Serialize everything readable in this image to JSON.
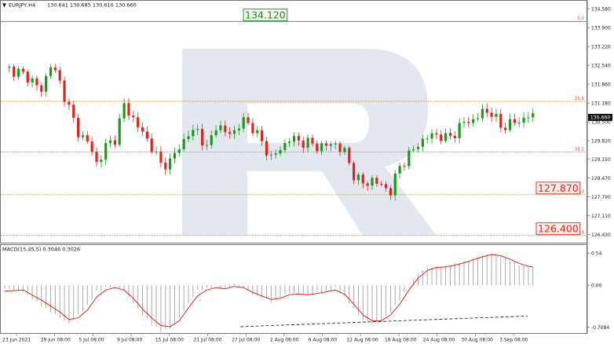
{
  "header": {
    "symbol": "EURJPY,H4",
    "ohlc": "130.641 130.685 130.610 130.660"
  },
  "colors": {
    "bull": "#1a9c1a",
    "bear": "#e0241b",
    "fib": "#f0a000",
    "fib_text": "#e24b2b",
    "top_line": "#3c8fd0",
    "macd_hist": "#a9a9a9",
    "macd_signal": "#e0241b",
    "watermark": "#e3e8f0"
  },
  "chart_data": [
    {
      "type": "candlestick",
      "ylim": [
        126.25,
        134.5
      ],
      "y_ticks": [
        "134.580",
        "133.900",
        "133.220",
        "132.540",
        "131.860",
        "131.180",
        "130.500",
        "129.820",
        "129.150",
        "128.470",
        "127.790",
        "127.110",
        "126.430"
      ],
      "x_labels": [
        "23 Jun 2021",
        "29 Jun 08:00",
        "5 Jul 08:00",
        "9 Jul 08:00",
        "15 Jul 08:00",
        "21 Jul 08:00",
        "27 Jul 08:00",
        "2 Aug 08:00",
        "6 Aug 08:00",
        "12 Aug 08:00",
        "18 Aug 08:00",
        "24 Aug 08:00",
        "30 Aug 08:00",
        "3 Sep 08:00"
      ],
      "current_price": "130.660",
      "fib_levels": [
        {
          "label": "0.0",
          "value": 134.12,
          "tag": "134.120"
        },
        {
          "label": "23.6",
          "value": 131.24,
          "tag": ""
        },
        {
          "label": "38.2",
          "value": 129.41,
          "tag": ""
        },
        {
          "label": "50.0",
          "value": 127.87,
          "tag": "127.870"
        },
        {
          "label": "61.8",
          "value": 126.4,
          "tag": "126.400"
        }
      ],
      "price_path": [
        [
          0,
          132.45
        ],
        [
          3,
          132.3
        ],
        [
          6,
          132.0
        ],
        [
          8,
          131.6
        ],
        [
          10,
          132.6
        ],
        [
          12,
          131.9
        ],
        [
          14,
          131.0
        ],
        [
          16,
          130.1
        ],
        [
          18,
          129.8
        ],
        [
          20,
          129.0
        ],
        [
          22,
          129.6
        ],
        [
          24,
          129.9
        ],
        [
          26,
          131.1
        ],
        [
          28,
          130.6
        ],
        [
          30,
          130.1
        ],
        [
          32,
          129.6
        ],
        [
          34,
          128.95
        ],
        [
          36,
          129.05
        ],
        [
          38,
          129.6
        ],
        [
          40,
          130.05
        ],
        [
          42,
          130.2
        ],
        [
          44,
          129.5
        ],
        [
          46,
          130.4
        ],
        [
          48,
          130.1
        ],
        [
          50,
          130.15
        ],
        [
          52,
          130.55
        ],
        [
          54,
          130.3
        ],
        [
          56,
          129.75
        ],
        [
          58,
          129.2
        ],
        [
          60,
          129.5
        ],
        [
          62,
          129.9
        ],
        [
          64,
          129.8
        ],
        [
          66,
          129.75
        ],
        [
          68,
          129.6
        ],
        [
          70,
          129.65
        ],
        [
          72,
          129.7
        ],
        [
          74,
          129.4
        ],
        [
          76,
          128.6
        ],
        [
          78,
          128.25
        ],
        [
          80,
          128.4
        ],
        [
          82,
          128.2
        ],
        [
          84,
          128.0
        ],
        [
          86,
          128.9
        ],
        [
          88,
          129.3
        ],
        [
          90,
          129.7
        ],
        [
          92,
          129.95
        ],
        [
          94,
          130.05
        ],
        [
          96,
          129.9
        ],
        [
          98,
          130.1
        ],
        [
          100,
          130.5
        ],
        [
          102,
          130.55
        ],
        [
          104,
          130.85
        ],
        [
          106,
          130.85
        ],
        [
          108,
          130.3
        ],
        [
          110,
          130.45
        ],
        [
          112,
          130.5
        ],
        [
          114,
          130.75
        ],
        [
          115,
          130.66
        ]
      ]
    },
    {
      "type": "bar",
      "title": "MACD(15,45,5) 0.3046 0.3026",
      "ylim": [
        -0.78,
        0.6
      ],
      "y_ticks": [
        "0.54",
        "0.00",
        "-0.7084"
      ],
      "hist_path": [
        [
          0,
          -0.05
        ],
        [
          4,
          -0.1
        ],
        [
          8,
          -0.35
        ],
        [
          12,
          -0.55
        ],
        [
          14,
          -0.65
        ],
        [
          16,
          -0.5
        ],
        [
          18,
          -0.35
        ],
        [
          20,
          -0.1
        ],
        [
          22,
          -0.05
        ],
        [
          24,
          0.0
        ],
        [
          26,
          -0.1
        ],
        [
          28,
          -0.3
        ],
        [
          30,
          -0.5
        ],
        [
          32,
          -0.65
        ],
        [
          34,
          -0.78
        ],
        [
          36,
          -0.72
        ],
        [
          38,
          -0.55
        ],
        [
          40,
          -0.3
        ],
        [
          42,
          -0.08
        ],
        [
          44,
          -0.05
        ],
        [
          46,
          -0.02
        ],
        [
          48,
          -0.08
        ],
        [
          50,
          0.02
        ],
        [
          52,
          -0.05
        ],
        [
          54,
          -0.15
        ],
        [
          56,
          -0.2
        ],
        [
          58,
          -0.28
        ],
        [
          60,
          -0.2
        ],
        [
          62,
          -0.12
        ],
        [
          64,
          -0.15
        ],
        [
          66,
          -0.18
        ],
        [
          68,
          -0.12
        ],
        [
          70,
          -0.1
        ],
        [
          72,
          -0.05
        ],
        [
          74,
          -0.2
        ],
        [
          76,
          -0.4
        ],
        [
          78,
          -0.6
        ],
        [
          80,
          -0.65
        ],
        [
          82,
          -0.6
        ],
        [
          84,
          -0.45
        ],
        [
          86,
          -0.25
        ],
        [
          88,
          0.0
        ],
        [
          90,
          0.2
        ],
        [
          92,
          0.3
        ],
        [
          94,
          0.32
        ],
        [
          96,
          0.32
        ],
        [
          98,
          0.36
        ],
        [
          100,
          0.4
        ],
        [
          102,
          0.45
        ],
        [
          104,
          0.5
        ],
        [
          106,
          0.54
        ],
        [
          108,
          0.5
        ],
        [
          110,
          0.42
        ],
        [
          112,
          0.35
        ],
        [
          114,
          0.3
        ],
        [
          115,
          0.3
        ]
      ],
      "signal_path": [
        [
          0,
          -0.1
        ],
        [
          4,
          -0.08
        ],
        [
          8,
          -0.25
        ],
        [
          12,
          -0.45
        ],
        [
          14,
          -0.58
        ],
        [
          16,
          -0.55
        ],
        [
          18,
          -0.42
        ],
        [
          20,
          -0.2
        ],
        [
          22,
          -0.08
        ],
        [
          24,
          -0.04
        ],
        [
          26,
          -0.08
        ],
        [
          28,
          -0.22
        ],
        [
          30,
          -0.4
        ],
        [
          32,
          -0.55
        ],
        [
          34,
          -0.68
        ],
        [
          36,
          -0.7
        ],
        [
          38,
          -0.6
        ],
        [
          40,
          -0.38
        ],
        [
          42,
          -0.18
        ],
        [
          44,
          -0.08
        ],
        [
          46,
          -0.04
        ],
        [
          48,
          -0.06
        ],
        [
          50,
          -0.02
        ],
        [
          52,
          -0.04
        ],
        [
          54,
          -0.12
        ],
        [
          56,
          -0.18
        ],
        [
          58,
          -0.24
        ],
        [
          60,
          -0.22
        ],
        [
          62,
          -0.16
        ],
        [
          64,
          -0.15
        ],
        [
          66,
          -0.16
        ],
        [
          68,
          -0.14
        ],
        [
          70,
          -0.11
        ],
        [
          72,
          -0.08
        ],
        [
          74,
          -0.15
        ],
        [
          76,
          -0.32
        ],
        [
          78,
          -0.5
        ],
        [
          80,
          -0.6
        ],
        [
          82,
          -0.6
        ],
        [
          84,
          -0.5
        ],
        [
          86,
          -0.32
        ],
        [
          88,
          -0.08
        ],
        [
          90,
          0.12
        ],
        [
          92,
          0.25
        ],
        [
          94,
          0.3
        ],
        [
          96,
          0.31
        ],
        [
          98,
          0.34
        ],
        [
          100,
          0.38
        ],
        [
          102,
          0.43
        ],
        [
          104,
          0.48
        ],
        [
          106,
          0.52
        ],
        [
          108,
          0.5
        ],
        [
          110,
          0.44
        ],
        [
          112,
          0.37
        ],
        [
          114,
          0.32
        ],
        [
          115,
          0.31
        ]
      ],
      "divergence_line": [
        [
          53,
          -0.7
        ],
        [
          114,
          -0.52
        ]
      ]
    }
  ]
}
